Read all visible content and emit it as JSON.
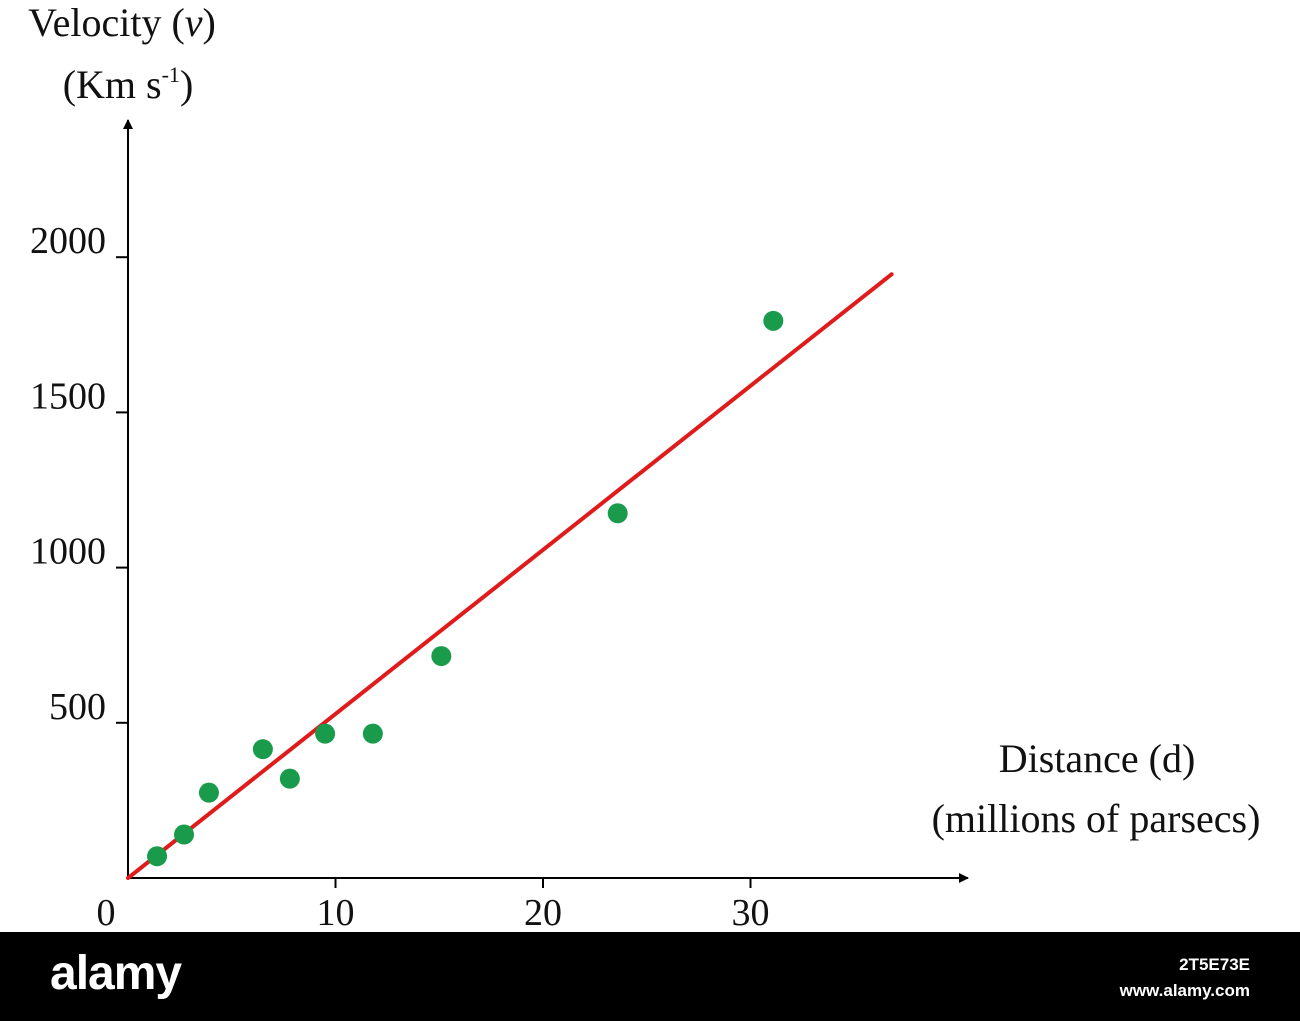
{
  "chart_data": {
    "type": "scatter",
    "title": "",
    "ylabel": "Velocity (",
    "ylabel_symbol": "ν",
    "ylabel_close": ")",
    "yunit": "(Km s",
    "yunit_sup": "-1",
    "yunit_close": ")",
    "xlabel": "Distance (d)",
    "xunit": "(millions of parsecs)",
    "origin_label": "0",
    "xlim": [
      0,
      40
    ],
    "ylim": [
      0,
      2350
    ],
    "x_ticks": [
      {
        "value": 10,
        "label": "10"
      },
      {
        "value": 20,
        "label": "20"
      },
      {
        "value": 30,
        "label": "30"
      }
    ],
    "y_ticks": [
      {
        "value": 500,
        "label": "500"
      },
      {
        "value": 1000,
        "label": "1000"
      },
      {
        "value": 1500,
        "label": "1500"
      },
      {
        "value": 2000,
        "label": "2000"
      }
    ],
    "points": [
      {
        "x": 1.4,
        "y": 70
      },
      {
        "x": 2.7,
        "y": 140
      },
      {
        "x": 3.9,
        "y": 275
      },
      {
        "x": 6.5,
        "y": 415
      },
      {
        "x": 7.8,
        "y": 320
      },
      {
        "x": 9.5,
        "y": 465
      },
      {
        "x": 11.8,
        "y": 465
      },
      {
        "x": 15.1,
        "y": 715
      },
      {
        "x": 23.6,
        "y": 1175
      },
      {
        "x": 31.1,
        "y": 1795
      }
    ],
    "fit_line": {
      "x": [
        0,
        36.8
      ],
      "y": [
        0,
        1945
      ]
    },
    "point_color": "#1a9b4b",
    "line_color": "#e01b1b",
    "axis_color": "#000000",
    "grid": false
  },
  "footer": {
    "brand": "alamy",
    "image_code": "2T5E73E",
    "site": "www.alamy.com"
  }
}
